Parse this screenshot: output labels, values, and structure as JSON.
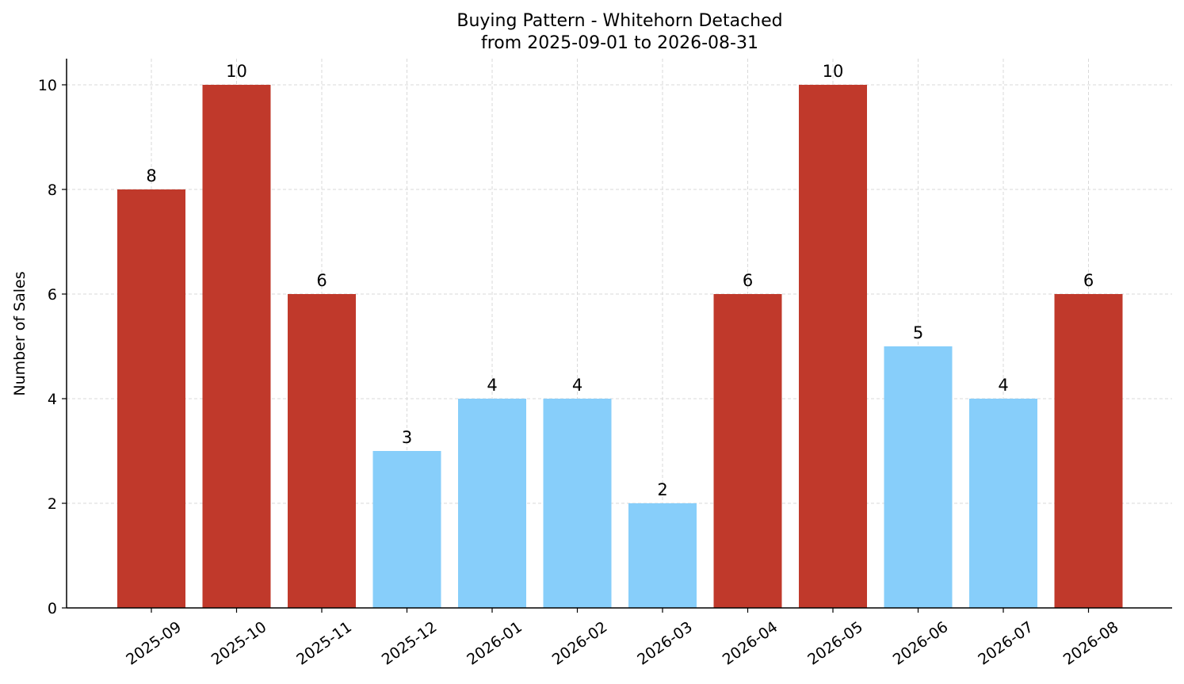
{
  "chart_data": {
    "type": "bar",
    "title": "Buying Pattern - Whitehorn Detached",
    "subtitle": "from 2025-09-01 to 2026-08-31",
    "xlabel": "",
    "ylabel": "Number of Sales",
    "categories": [
      "2025-09",
      "2025-10",
      "2025-11",
      "2025-12",
      "2026-01",
      "2026-02",
      "2026-03",
      "2026-04",
      "2026-05",
      "2026-06",
      "2026-07",
      "2026-08"
    ],
    "values": [
      8,
      10,
      6,
      3,
      4,
      4,
      2,
      6,
      10,
      5,
      4,
      6
    ],
    "bar_colors": [
      "#c0392b",
      "#c0392b",
      "#c0392b",
      "#87cefa",
      "#87cefa",
      "#87cefa",
      "#87cefa",
      "#c0392b",
      "#c0392b",
      "#87cefa",
      "#87cefa",
      "#c0392b"
    ],
    "yticks": [
      0,
      2,
      4,
      6,
      8,
      10
    ],
    "ylim": [
      0,
      10.5
    ],
    "grid": true,
    "grid_style": "dashed",
    "data_labels": true
  }
}
